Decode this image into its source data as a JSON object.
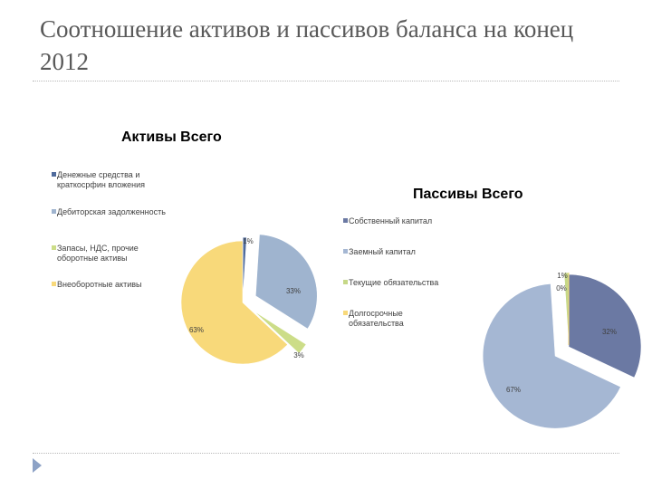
{
  "slide": {
    "title": "Соотношение активов и пассивов баланса на конец 2012"
  },
  "colors": {
    "assets": [
      "#4f6b9c",
      "#9fb4cf",
      "#ccdd88",
      "#f8d97a"
    ],
    "liabilities": [
      "#6b79a3",
      "#a5b7d3",
      "#c6d887",
      "#f8d97a"
    ]
  },
  "chart_data": [
    {
      "type": "pie",
      "title": "Активы Всего",
      "legend_position": "left",
      "categories": [
        "Денежные средства и краткосрфин вложения",
        "Дебиторская задолженность",
        "Запасы, НДС, прочие оборотные активы",
        "Внеоборотные активы"
      ],
      "values": [
        1,
        33,
        3,
        63
      ],
      "labels": [
        "1%",
        "33%",
        "3%",
        "63%"
      ]
    },
    {
      "type": "pie",
      "title": "Пассивы Всего",
      "legend_position": "left",
      "categories": [
        "Собственный капитал",
        "Заемный капитал",
        "Текущие обязательства",
        "Долгосрочные обязательства"
      ],
      "values": [
        32,
        67,
        1,
        0
      ],
      "labels": [
        "32%",
        "67%",
        "1%",
        "0%"
      ]
    }
  ]
}
